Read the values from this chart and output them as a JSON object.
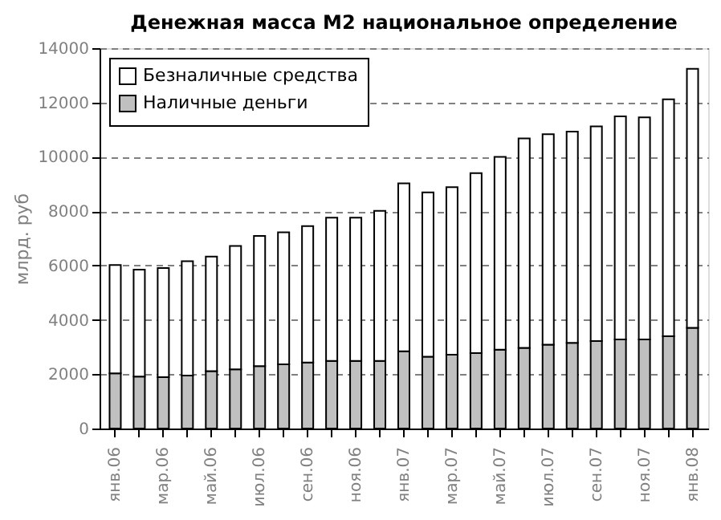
{
  "chart_data": {
    "type": "bar",
    "title": "Денежная масса М2 национальное определение",
    "ylabel": "млрд. руб",
    "categories": [
      "янв.06",
      null,
      "мар.06",
      null,
      "май.06",
      null,
      "июл.06",
      null,
      "сен.06",
      null,
      "ноя.06",
      null,
      "янв.07",
      null,
      "мар.07",
      null,
      "май.07",
      null,
      "июл.07",
      null,
      "сен.07",
      null,
      "ноя.07",
      null,
      "янв.08"
    ],
    "stacked": true,
    "series": [
      {
        "name": "Наличные деньги",
        "color": "#c0c0c0",
        "values": [
          2030,
          1910,
          1890,
          1950,
          2110,
          2180,
          2300,
          2360,
          2430,
          2490,
          2490,
          2490,
          2840,
          2640,
          2720,
          2780,
          2900,
          2970,
          3090,
          3150,
          3220,
          3280,
          3280,
          3400,
          3710
        ]
      },
      {
        "name": "Безналичные средства",
        "color": "#ffffff",
        "values": [
          3990,
          3940,
          4020,
          4210,
          4220,
          4540,
          4790,
          4860,
          5020,
          5270,
          5270,
          5520,
          6180,
          6050,
          6160,
          6620,
          7100,
          7710,
          7740,
          7780,
          7900,
          8210,
          8170,
          8720,
          9530
        ]
      }
    ],
    "ylim": [
      0,
      14000
    ],
    "yticks": [
      0,
      2000,
      4000,
      6000,
      8000,
      10000,
      12000,
      14000
    ],
    "grid": "y",
    "legend": "top left"
  }
}
